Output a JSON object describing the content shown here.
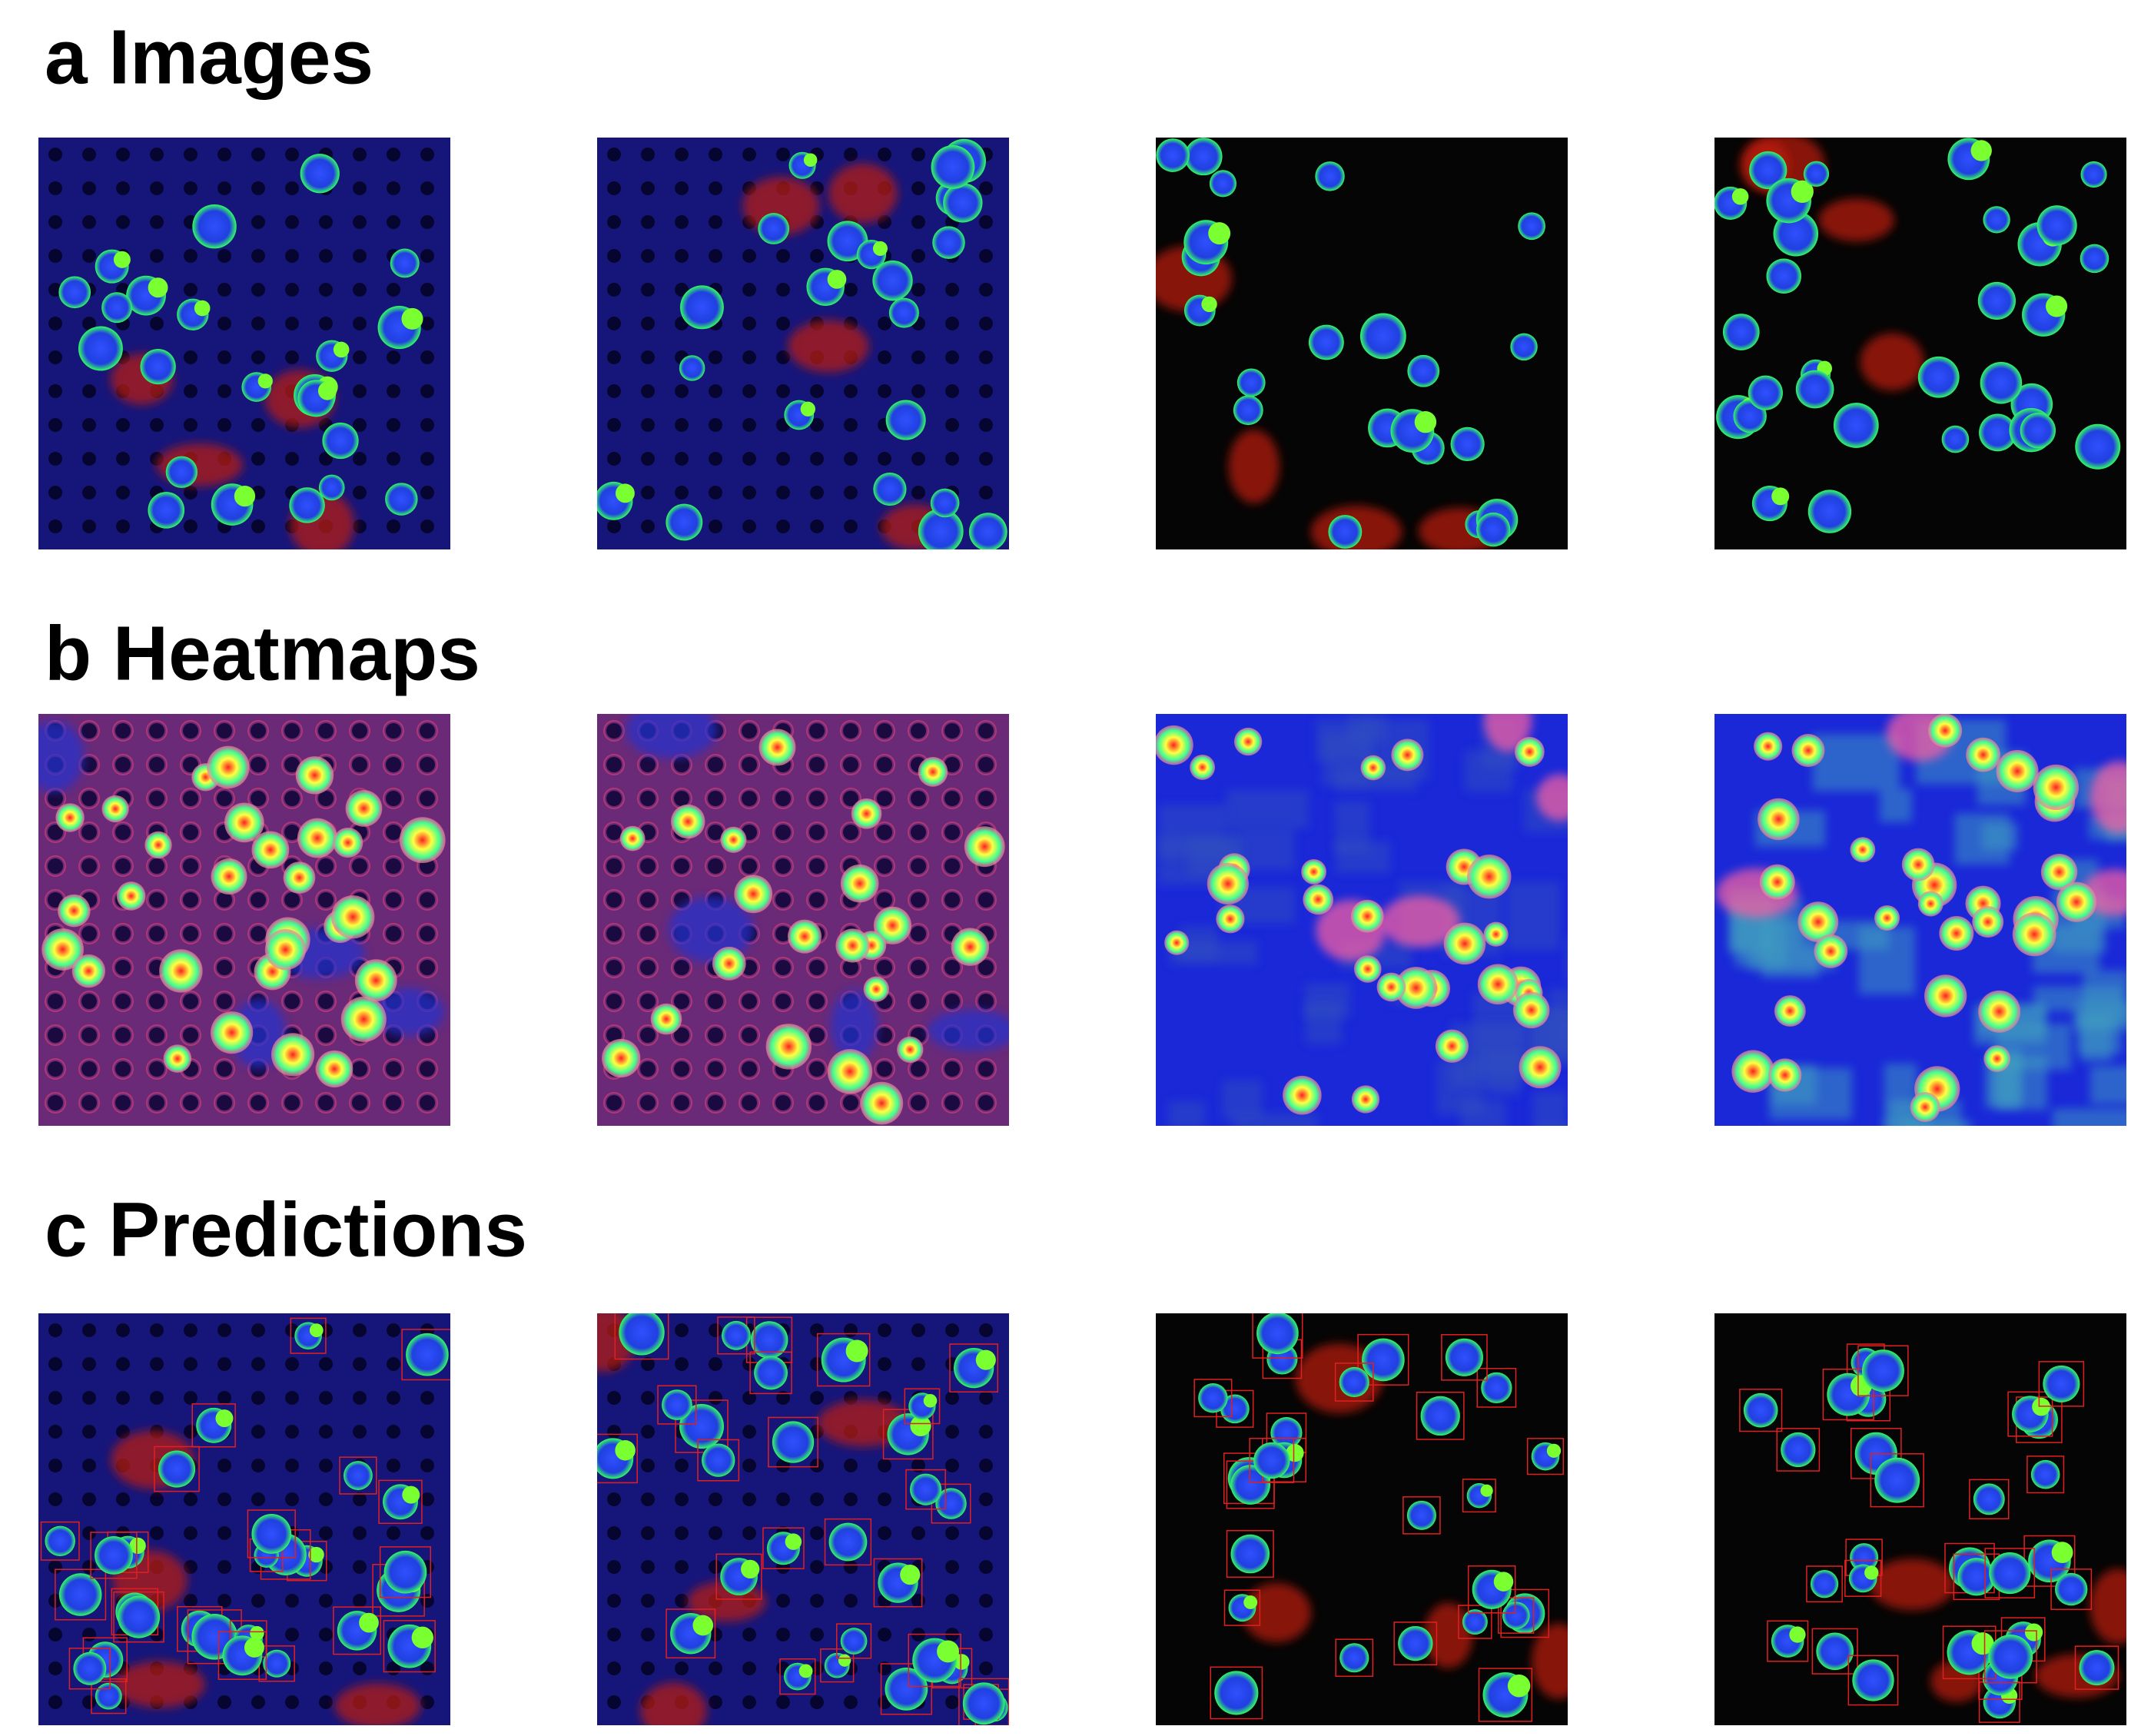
{
  "panels": [
    {
      "heading": "a Images"
    },
    {
      "heading": "b Heatmaps"
    },
    {
      "heading": "c Predictions"
    }
  ]
}
